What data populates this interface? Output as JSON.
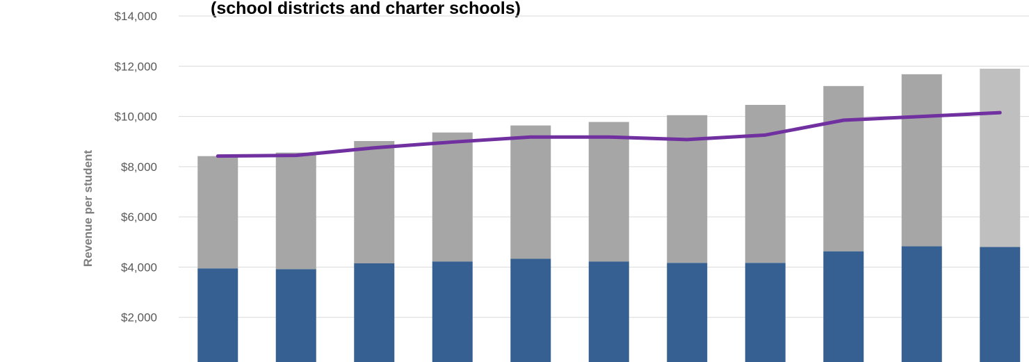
{
  "chart_data": {
    "type": "stacked-bar-line",
    "title": "(school districts and charter schools)",
    "y_label": "Revenue per student",
    "categories": [
      null,
      null,
      null,
      null,
      null,
      null,
      null,
      null,
      null,
      null,
      null
    ],
    "series": [
      {
        "name": null,
        "color": "#366092",
        "values": [
          3950,
          3920,
          4150,
          4220,
          4330,
          4220,
          4170,
          4170,
          4630,
          4830,
          4800
        ]
      },
      {
        "name": null,
        "color": "#a6a6a6",
        "colors": [
          "#a6a6a6",
          "#a6a6a6",
          "#a6a6a6",
          "#a6a6a6",
          "#a6a6a6",
          "#a6a6a6",
          "#a6a6a6",
          "#a6a6a6",
          "#a6a6a6",
          "#a6a6a6",
          "#bfbfbf"
        ],
        "values": [
          4470,
          4640,
          4870,
          5140,
          5310,
          5560,
          5880,
          6290,
          6580,
          6850,
          7100
        ]
      },
      {
        "name": null,
        "type": "line",
        "color": "#7030a0",
        "values": [
          8420,
          8450,
          8750,
          8980,
          9180,
          9180,
          9080,
          9260,
          9850,
          10000,
          10150
        ]
      }
    ],
    "ylim": [
      0,
      14000
    ],
    "yticks": [
      {
        "value": 0,
        "label": "$-"
      },
      {
        "value": 2000,
        "label": "$2,000"
      },
      {
        "value": 4000,
        "label": "$4,000"
      },
      {
        "value": 6000,
        "label": "$6,000"
      },
      {
        "value": 8000,
        "label": "$8,000"
      },
      {
        "value": 10000,
        "label": "$10,000"
      },
      {
        "value": 12000,
        "label": "$12,000"
      },
      {
        "value": 14000,
        "label": "$14,000"
      }
    ],
    "grid": true
  }
}
